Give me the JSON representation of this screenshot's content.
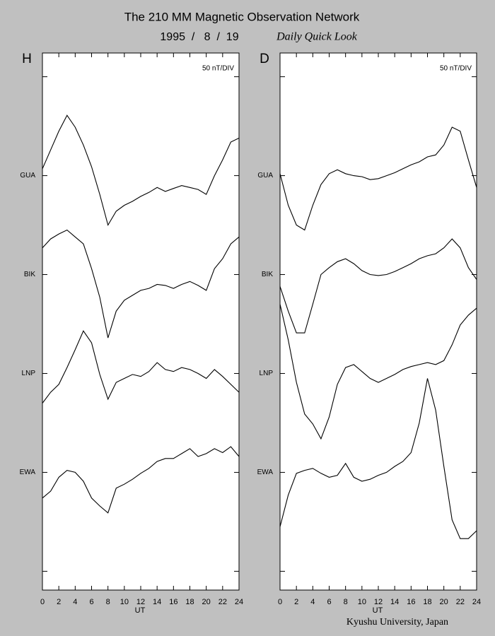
{
  "header": {
    "title": "The 210 MM Magnetic Observation Network",
    "date": "1995  /   8  /  19",
    "subtitle": "Daily Quick Look"
  },
  "footer": "Kyushu University, Japan",
  "chart_data": [
    {
      "type": "line",
      "panel_label": "H",
      "scale_note": "50 nT/DIV",
      "x_label": "UT",
      "xlim": [
        0,
        24
      ],
      "xticks": [
        0,
        2,
        4,
        6,
        8,
        10,
        12,
        14,
        16,
        18,
        20,
        22,
        24
      ],
      "ylim": [
        -0.19,
        5.24
      ],
      "yticks": [
        {
          "value": 0,
          "label": null
        },
        {
          "value": 1,
          "label": "EWA"
        },
        {
          "value": 2,
          "label": "LNP"
        },
        {
          "value": 3,
          "label": "BIK"
        },
        {
          "value": 4,
          "label": "GUA"
        },
        {
          "value": 5,
          "label": null
        }
      ],
      "x": [
        0,
        1,
        2,
        3,
        4,
        5,
        6,
        7,
        8,
        9,
        10,
        11,
        12,
        13,
        14,
        15,
        16,
        17,
        18,
        19,
        20,
        21,
        22,
        23,
        24
      ],
      "series": [
        {
          "color": "#000000",
          "values": [
            4.07,
            4.26,
            4.45,
            4.61,
            4.49,
            4.31,
            4.09,
            3.81,
            3.5,
            3.64,
            3.7,
            3.74,
            3.79,
            3.83,
            3.88,
            3.84,
            3.87,
            3.9,
            3.88,
            3.86,
            3.81,
            4.0,
            4.16,
            4.34,
            4.38
          ]
        },
        {
          "color": "#000000",
          "values": [
            3.27,
            3.36,
            3.41,
            3.45,
            3.38,
            3.31,
            3.06,
            2.77,
            2.36,
            2.63,
            2.74,
            2.79,
            2.84,
            2.86,
            2.9,
            2.89,
            2.86,
            2.9,
            2.93,
            2.89,
            2.84,
            3.06,
            3.16,
            3.31,
            3.38
          ]
        },
        {
          "color": "#000000",
          "values": [
            1.7,
            1.81,
            1.89,
            2.06,
            2.24,
            2.43,
            2.31,
            1.99,
            1.74,
            1.91,
            1.95,
            1.99,
            1.97,
            2.02,
            2.11,
            2.04,
            2.02,
            2.06,
            2.04,
            2.0,
            1.95,
            2.04,
            1.97,
            1.89,
            1.81
          ]
        },
        {
          "color": "#000000",
          "values": [
            0.74,
            0.81,
            0.95,
            1.02,
            1.0,
            0.91,
            0.74,
            0.66,
            0.59,
            0.84,
            0.88,
            0.93,
            0.99,
            1.04,
            1.11,
            1.14,
            1.14,
            1.19,
            1.24,
            1.16,
            1.19,
            1.24,
            1.2,
            1.26,
            1.16
          ]
        }
      ]
    },
    {
      "type": "line",
      "panel_label": "D",
      "scale_note": "50 nT/DIV",
      "x_label": "UT",
      "xlim": [
        0,
        24
      ],
      "xticks": [
        0,
        2,
        4,
        6,
        8,
        10,
        12,
        14,
        16,
        18,
        20,
        22,
        24
      ],
      "ylim": [
        -0.19,
        5.24
      ],
      "yticks": [
        {
          "value": 0,
          "label": null
        },
        {
          "value": 1,
          "label": "EWA"
        },
        {
          "value": 2,
          "label": "LNP"
        },
        {
          "value": 3,
          "label": "BIK"
        },
        {
          "value": 4,
          "label": "GUA"
        },
        {
          "value": 5,
          "label": null
        }
      ],
      "x": [
        0,
        1,
        2,
        3,
        4,
        5,
        6,
        7,
        8,
        9,
        10,
        11,
        12,
        13,
        14,
        15,
        16,
        17,
        18,
        19,
        20,
        21,
        22,
        23,
        24
      ],
      "series": [
        {
          "color": "#000000",
          "values": [
            4.02,
            3.7,
            3.5,
            3.45,
            3.7,
            3.91,
            4.02,
            4.06,
            4.02,
            4.0,
            3.99,
            3.96,
            3.97,
            4.0,
            4.03,
            4.07,
            4.11,
            4.14,
            4.19,
            4.21,
            4.31,
            4.49,
            4.45,
            4.16,
            3.88
          ]
        },
        {
          "color": "#000000",
          "values": [
            2.88,
            2.63,
            2.41,
            2.41,
            2.7,
            3.0,
            3.07,
            3.13,
            3.16,
            3.11,
            3.04,
            3.0,
            2.99,
            3.0,
            3.03,
            3.07,
            3.11,
            3.16,
            3.19,
            3.21,
            3.27,
            3.36,
            3.27,
            3.07,
            2.95
          ]
        },
        {
          "color": "#000000",
          "values": [
            2.7,
            2.34,
            1.91,
            1.59,
            1.49,
            1.34,
            1.56,
            1.89,
            2.06,
            2.09,
            2.02,
            1.95,
            1.91,
            1.95,
            1.99,
            2.04,
            2.07,
            2.09,
            2.11,
            2.09,
            2.13,
            2.29,
            2.49,
            2.59,
            2.66
          ]
        },
        {
          "color": "#000000",
          "values": [
            0.45,
            0.77,
            0.99,
            1.02,
            1.04,
            0.99,
            0.95,
            0.97,
            1.09,
            0.95,
            0.91,
            0.93,
            0.97,
            1.0,
            1.06,
            1.11,
            1.2,
            1.5,
            1.95,
            1.63,
            1.06,
            0.52,
            0.33,
            0.33,
            0.41
          ]
        }
      ]
    }
  ]
}
